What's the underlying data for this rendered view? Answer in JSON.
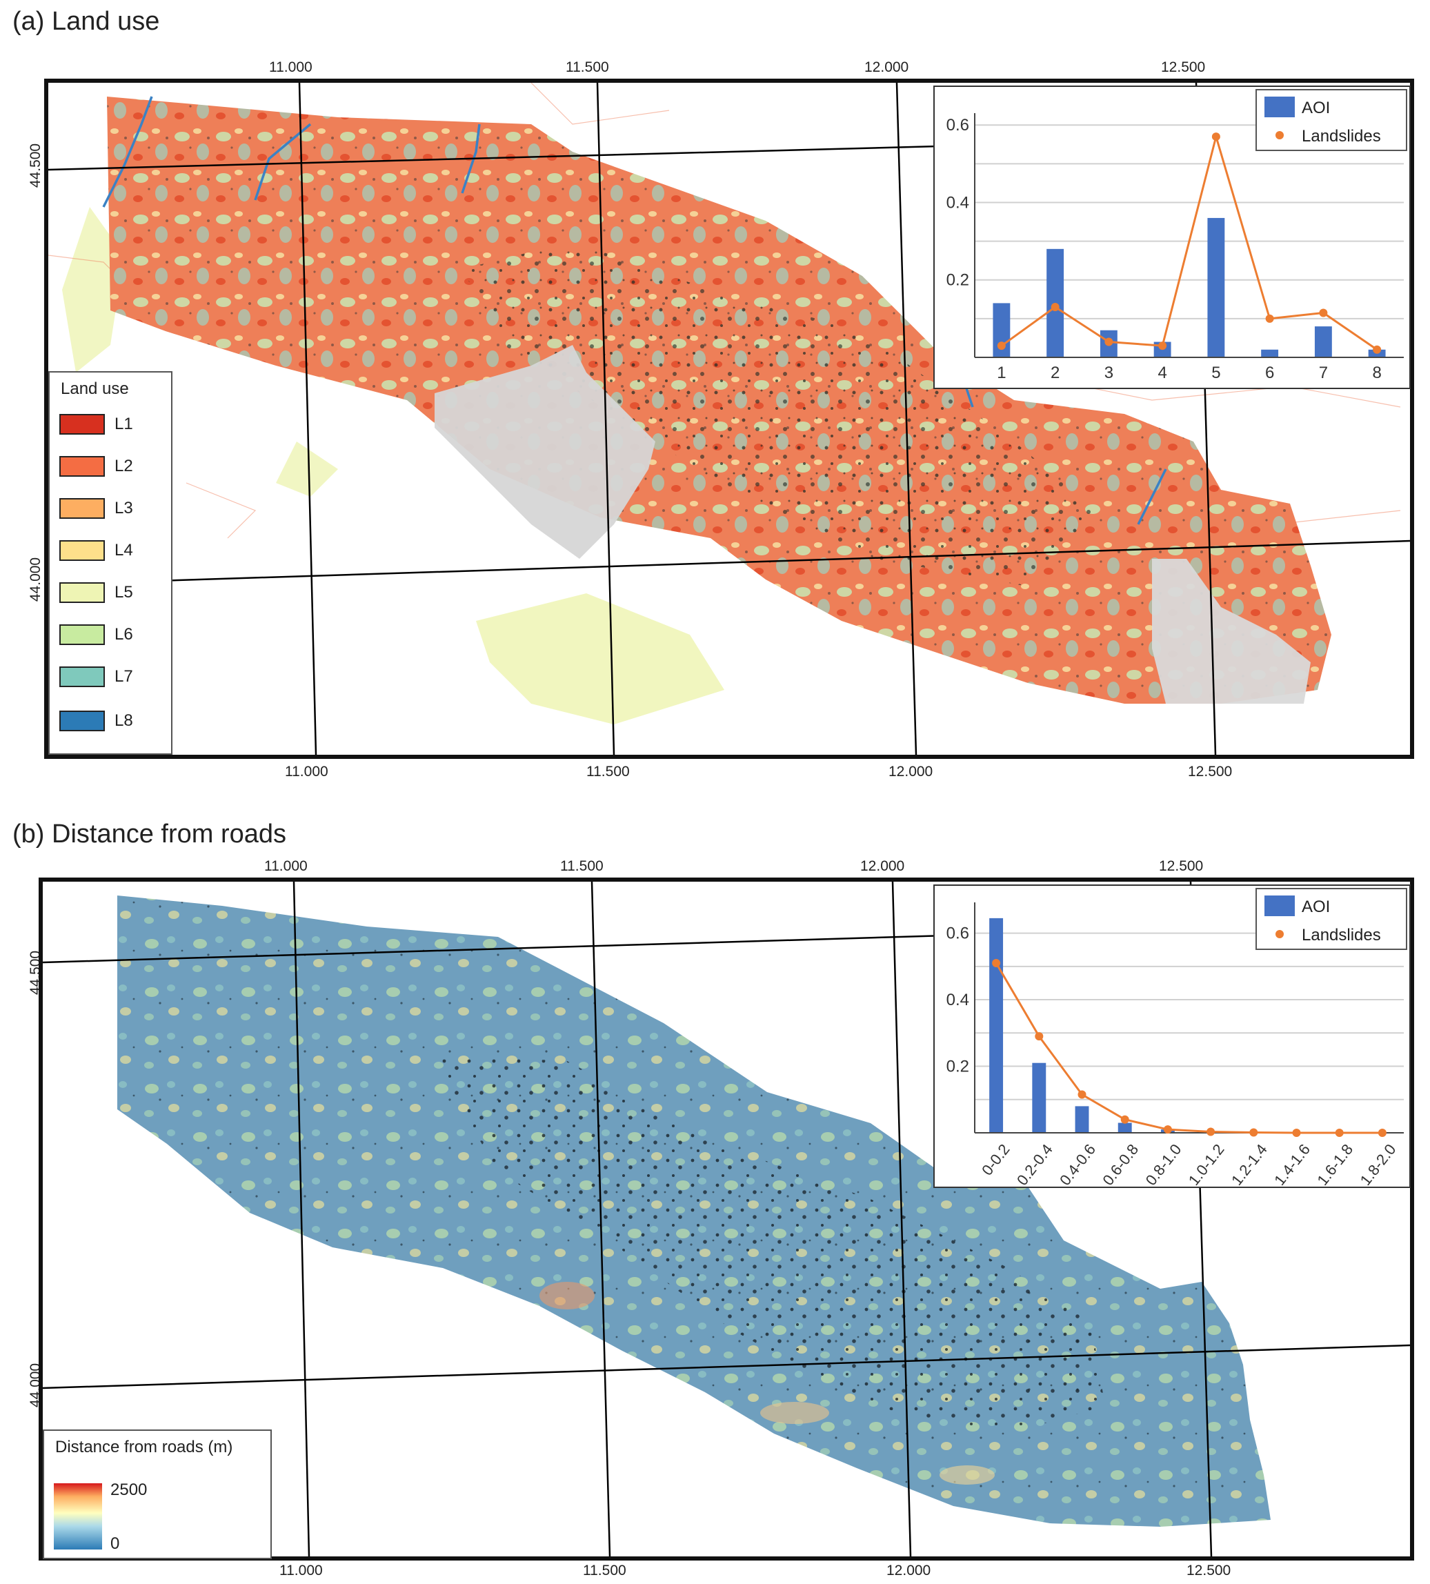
{
  "panel_a": {
    "title": "(a) Land use",
    "lon_ticks": [
      "11.000",
      "11.500",
      "12.000",
      "12.500"
    ],
    "lat_ticks": [
      "44.500",
      "44.000"
    ],
    "legend": {
      "title": "Land use",
      "items": [
        {
          "label": "L1",
          "color": "#d7301f"
        },
        {
          "label": "L2",
          "color": "#f46d43"
        },
        {
          "label": "L3",
          "color": "#fdae61"
        },
        {
          "label": "L4",
          "color": "#fee08b"
        },
        {
          "label": "L5",
          "color": "#eef4b4"
        },
        {
          "label": "L6",
          "color": "#c8eba0"
        },
        {
          "label": "L7",
          "color": "#7fc9bc"
        },
        {
          "label": "L8",
          "color": "#2c7bb6"
        }
      ]
    }
  },
  "panel_b": {
    "title": "(b) Distance from roads",
    "lon_ticks": [
      "11.000",
      "11.500",
      "12.000",
      "12.500"
    ],
    "lat_ticks": [
      "44.500",
      "44.000"
    ],
    "legend": {
      "title": "Distance from roads (m)",
      "max_label": "2500",
      "min_label": "0"
    }
  },
  "chart_data": [
    {
      "type": "bar",
      "panel": "a",
      "categories": [
        "1",
        "2",
        "3",
        "4",
        "5",
        "6",
        "7",
        "8"
      ],
      "series": [
        {
          "name": "AOI",
          "kind": "bar",
          "color": "#4472c4",
          "values": [
            0.14,
            0.28,
            0.07,
            0.04,
            0.36,
            0.02,
            0.08,
            0.02
          ]
        },
        {
          "name": "Landslides",
          "kind": "line",
          "color": "#ed7d31",
          "values": [
            0.03,
            0.13,
            0.04,
            0.03,
            0.57,
            0.1,
            0.115,
            0.02
          ]
        }
      ],
      "yticks": [
        "0.2",
        "0.4",
        "0.6"
      ],
      "ylim": [
        0,
        0.62
      ],
      "grid": true,
      "legend_position": "top-right"
    },
    {
      "type": "bar",
      "panel": "b",
      "categories": [
        "0-0.2",
        "0.2-0.4",
        "0.4-0.6",
        "0.6-0.8",
        "0.8-1.0",
        "1.0-1.2",
        "1.2-1.4",
        "1.4-1.6",
        "1.6-1.8",
        "1.8-2.0"
      ],
      "series": [
        {
          "name": "AOI",
          "kind": "bar",
          "color": "#4472c4",
          "values": [
            0.645,
            0.21,
            0.08,
            0.03,
            0.01,
            0.004,
            0.001,
            0,
            0,
            0
          ]
        },
        {
          "name": "Landslides",
          "kind": "line",
          "color": "#ed7d31",
          "values": [
            0.51,
            0.29,
            0.115,
            0.04,
            0.01,
            0.003,
            0.001,
            0,
            0,
            0
          ]
        }
      ],
      "yticks": [
        "0.2",
        "0.4",
        "0.6"
      ],
      "ylim": [
        0,
        0.68
      ],
      "grid": true,
      "legend_position": "top-right"
    }
  ]
}
